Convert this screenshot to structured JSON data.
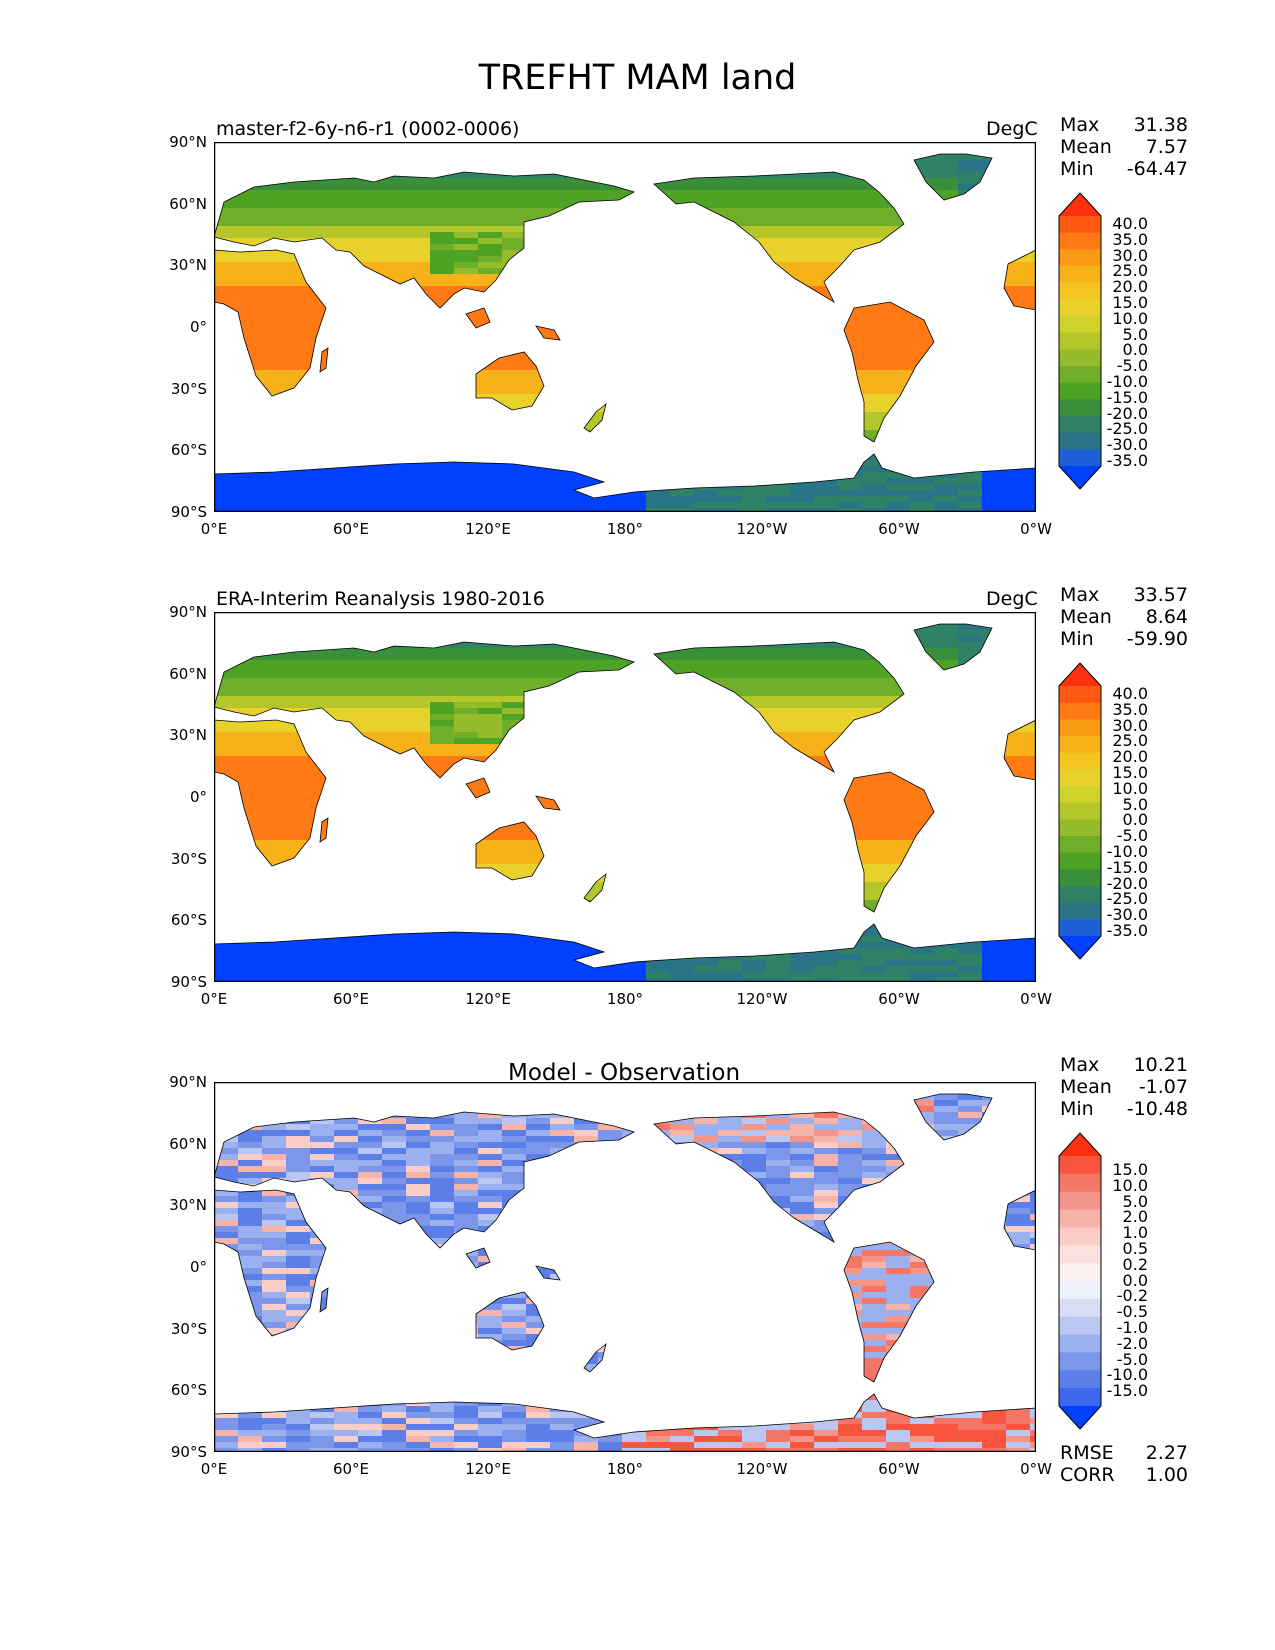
{
  "figure_title": "TREFHT MAM land",
  "axes": {
    "lat_labels": [
      "90°N",
      "60°N",
      "30°N",
      "0°",
      "30°S",
      "60°S",
      "90°S"
    ],
    "lon_labels": [
      "0°E",
      "60°E",
      "120°E",
      "180°",
      "120°W",
      "60°W",
      "0°W"
    ]
  },
  "panels": [
    {
      "left_title": "master-f2-6y-n6-r1 (0002-0006)",
      "center_title": "",
      "units": "DegC",
      "stats": {
        "max_label": "Max",
        "max": "31.38",
        "mean_label": "Mean",
        "mean": "7.57",
        "min_label": "Min",
        "min": "-64.47"
      },
      "colorbar": {
        "labels": [
          "40.0",
          "35.0",
          "30.0",
          "25.0",
          "20.0",
          "15.0",
          "10.0",
          "5.0",
          "0.0",
          "-5.0",
          "-10.0",
          "-15.0",
          "-20.0",
          "-25.0",
          "-30.0",
          "-35.0"
        ],
        "colors": [
          "#ff3010",
          "#ff5a14",
          "#ff7a14",
          "#f99a14",
          "#f7b21a",
          "#f4c521",
          "#e8d12a",
          "#ced22a",
          "#b3c72b",
          "#93bb2a",
          "#6fae29",
          "#4ea324",
          "#3a8f3a",
          "#2f8266",
          "#2a7487",
          "#1e5fd6",
          "#0040ff"
        ]
      }
    },
    {
      "left_title": "ERA-Interim Reanalysis 1980-2016",
      "center_title": "",
      "units": "DegC",
      "stats": {
        "max_label": "Max",
        "max": "33.57",
        "mean_label": "Mean",
        "mean": "8.64",
        "min_label": "Min",
        "min": "-59.90"
      },
      "colorbar": {
        "labels": [
          "40.0",
          "35.0",
          "30.0",
          "25.0",
          "20.0",
          "15.0",
          "10.0",
          "5.0",
          "0.0",
          "-5.0",
          "-10.0",
          "-15.0",
          "-20.0",
          "-25.0",
          "-30.0",
          "-35.0"
        ],
        "colors": [
          "#ff3010",
          "#ff5a14",
          "#ff7a14",
          "#f99a14",
          "#f7b21a",
          "#f4c521",
          "#e8d12a",
          "#ced22a",
          "#b3c72b",
          "#93bb2a",
          "#6fae29",
          "#4ea324",
          "#3a8f3a",
          "#2f8266",
          "#2a7487",
          "#1e5fd6",
          "#0040ff"
        ]
      }
    },
    {
      "left_title": "",
      "center_title": "Model - Observation",
      "units": "",
      "stats": {
        "max_label": "Max",
        "max": "10.21",
        "mean_label": "Mean",
        "mean": "-1.07",
        "min_label": "Min",
        "min": "-10.48"
      },
      "extra_stats": {
        "rmse_label": "RMSE",
        "rmse": "2.27",
        "corr_label": "CORR",
        "corr": "1.00"
      },
      "colorbar": {
        "labels": [
          "15.0",
          "10.0",
          "5.0",
          "2.0",
          "1.0",
          "0.5",
          "0.2",
          "0.0",
          "-0.2",
          "-0.5",
          "-1.0",
          "-2.0",
          "-5.0",
          "-10.0",
          "-15.0"
        ],
        "colors": [
          "#ff3010",
          "#f8553f",
          "#f47666",
          "#f4958a",
          "#f6b3aa",
          "#f9cdc6",
          "#fbe2de",
          "#fbf0ee",
          "#eef0fb",
          "#d8ddf6",
          "#bac7f2",
          "#9bb0ee",
          "#7c97ea",
          "#5b7ee8",
          "#3d67ec",
          "#0040ff"
        ]
      }
    }
  ]
}
